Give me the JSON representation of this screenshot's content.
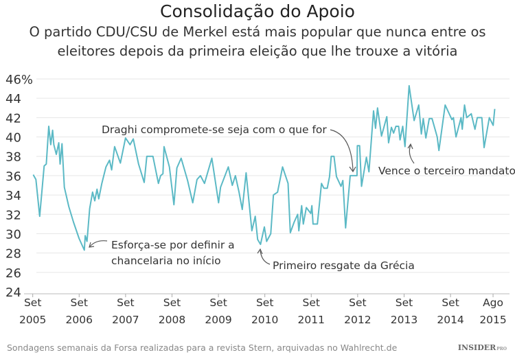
{
  "header": {
    "title": "Consolidação do Apoio",
    "subtitle_line1": "O partido CDU/CSU de Merkel está mais popular que nunca entre os",
    "subtitle_line2": "eleitores depois da primeira eleição que lhe trouxe a vitória"
  },
  "footer": {
    "source": "Sondagens semanais da Forsa realizadas para a revista Stern, arquivadas no Wahlrecht.de",
    "brand": "INSIDER",
    "brand_suffix": "PRO"
  },
  "chart_data": {
    "type": "line",
    "title": "Consolidação do Apoio",
    "xlabel": "",
    "ylabel": "",
    "ylim": [
      24,
      46
    ],
    "y_ticks": [
      "46%",
      "44",
      "42",
      "40",
      "38",
      "36",
      "34",
      "32",
      "30",
      "28",
      "26",
      "24"
    ],
    "y_tick_values": [
      46,
      44,
      42,
      40,
      38,
      36,
      34,
      32,
      30,
      28,
      26,
      24
    ],
    "x_ticks": [
      {
        "month": "Set",
        "year": "2005",
        "date": "2005-09-01"
      },
      {
        "month": "Set",
        "year": "2006",
        "date": "2006-09-01"
      },
      {
        "month": "Set",
        "year": "2007",
        "date": "2007-09-01"
      },
      {
        "month": "Set",
        "year": "2008",
        "date": "2008-09-01"
      },
      {
        "month": "Set",
        "year": "2009",
        "date": "2009-09-01"
      },
      {
        "month": "Set",
        "year": "2010",
        "date": "2010-09-01"
      },
      {
        "month": "Set",
        "year": "2011",
        "date": "2011-09-01"
      },
      {
        "month": "Set",
        "year": "2012",
        "date": "2012-09-01"
      },
      {
        "month": "Set",
        "year": "2013",
        "date": "2013-09-01"
      },
      {
        "month": "Set",
        "year": "2014",
        "date": "2014-09-01"
      },
      {
        "month": "Ago",
        "year": "2015",
        "date": "2015-08-01"
      }
    ],
    "grid": true,
    "line_color": "#5bb9c5",
    "series": [
      {
        "x": [
          "2005-09-05",
          "2005-09-26",
          "2005-10-25",
          "2005-11-30",
          "2005-12-16",
          "2006-01-05",
          "2006-01-21",
          "2006-02-05",
          "2006-02-15",
          "2006-03-04",
          "2006-03-23",
          "2006-04-03",
          "2006-04-18",
          "2006-05-06",
          "2006-06-11",
          "2006-07-17",
          "2006-08-31",
          "2006-10-11",
          "2006-10-18",
          "2006-11-02",
          "2006-11-23",
          "2006-12-15",
          "2007-01-02",
          "2007-01-20",
          "2007-02-03",
          "2007-02-27",
          "2007-03-29",
          "2007-04-27",
          "2007-05-13",
          "2007-06-06",
          "2007-07-21",
          "2007-08-31",
          "2007-10-06",
          "2007-10-31",
          "2007-12-12",
          "2008-01-26",
          "2008-02-16",
          "2008-04-03",
          "2008-05-16",
          "2008-06-03",
          "2008-06-21",
          "2008-06-30",
          "2008-08-11",
          "2008-09-16",
          "2008-10-09",
          "2008-11-12",
          "2009-01-02",
          "2009-02-12",
          "2009-03-15",
          "2009-04-12",
          "2009-05-13",
          "2009-07-10",
          "2009-09-02",
          "2009-09-18",
          "2009-11-18",
          "2009-12-19",
          "2010-01-13",
          "2010-02-11",
          "2010-03-06",
          "2010-04-06",
          "2010-05-21",
          "2010-06-17",
          "2010-07-05",
          "2010-07-28",
          "2010-08-28",
          "2010-09-15",
          "2010-10-17",
          "2010-11-08",
          "2010-12-10",
          "2011-01-19",
          "2011-03-01",
          "2011-03-19",
          "2011-04-19",
          "2011-05-16",
          "2011-05-25",
          "2011-06-17",
          "2011-06-30",
          "2011-07-23",
          "2011-08-28",
          "2011-09-06",
          "2011-09-15",
          "2011-10-19",
          "2011-11-21",
          "2011-12-09",
          "2012-01-05",
          "2012-01-23",
          "2012-02-06",
          "2012-02-28",
          "2012-03-17",
          "2012-04-22",
          "2012-05-06",
          "2012-05-28",
          "2012-07-03",
          "2012-08-26",
          "2012-08-29",
          "2012-09-16",
          "2012-10-01",
          "2012-11-09",
          "2012-11-29",
          "2013-01-04",
          "2013-01-20",
          "2013-02-05",
          "2013-03-06",
          "2013-04-17",
          "2013-05-01",
          "2013-05-23",
          "2013-06-10",
          "2013-06-28",
          "2013-07-19",
          "2013-07-30",
          "2013-08-21",
          "2013-09-08",
          "2013-10-10",
          "2013-11-19",
          "2013-12-25",
          "2014-01-15",
          "2014-01-30",
          "2014-02-20",
          "2014-03-16",
          "2014-04-08",
          "2014-05-18",
          "2014-06-01",
          "2014-07-20",
          "2014-09-12",
          "2014-09-24",
          "2014-10-14",
          "2014-11-23",
          "2014-12-02",
          "2014-12-20",
          "2015-01-07",
          "2015-02-12",
          "2015-03-11",
          "2015-03-29",
          "2015-05-04",
          "2015-05-22",
          "2015-07-02",
          "2015-08-02",
          "2015-08-14"
        ],
        "y": [
          36.1,
          35.6,
          31.8,
          37.0,
          37.2,
          41.1,
          39.2,
          40.7,
          39.2,
          38.2,
          39.4,
          37.2,
          39.3,
          34.8,
          32.8,
          31.2,
          29.5,
          28.3,
          29.8,
          29.2,
          32.6,
          34.3,
          33.4,
          34.6,
          33.6,
          35.2,
          36.9,
          37.6,
          36.6,
          39.0,
          37.3,
          39.9,
          39.2,
          39.8,
          37.2,
          35.3,
          38.0,
          38.0,
          35.2,
          36.0,
          36.2,
          39.0,
          36.9,
          33.0,
          36.8,
          37.8,
          35.5,
          33.2,
          35.6,
          36.0,
          35.2,
          37.8,
          33.2,
          34.8,
          36.9,
          35.0,
          36.0,
          34.3,
          32.5,
          36.3,
          30.3,
          31.8,
          29.4,
          28.9,
          30.7,
          29.2,
          30.0,
          34.0,
          34.3,
          36.9,
          35.2,
          30.1,
          31.2,
          32.0,
          30.3,
          32.9,
          31.0,
          32.7,
          32.1,
          32.9,
          31.0,
          31.0,
          35.2,
          34.7,
          34.7,
          35.9,
          38.0,
          38.0,
          35.9,
          34.9,
          35.5,
          30.6,
          36.0,
          36.0,
          39.1,
          39.1,
          34.9,
          37.9,
          36.4,
          42.7,
          40.9,
          43.0,
          40.1,
          42.1,
          39.4,
          41.0,
          40.4,
          41.1,
          41.1,
          39.7,
          41.1,
          39.0,
          45.3,
          41.7,
          43.3,
          40.3,
          41.9,
          39.9,
          41.9,
          41.9,
          40.0,
          38.6,
          43.3,
          41.8,
          42.0,
          40.0,
          42.0,
          40.8,
          43.3,
          42.0,
          42.4,
          40.8,
          42.0,
          42.0,
          38.9,
          42.0,
          41.2,
          42.9
        ]
      }
    ],
    "annotations": [
      {
        "text": "Draghi compromete-se seja com o que for"
      },
      {
        "text": "Vence o terceiro mandato"
      },
      {
        "text_line1": "Esforça-se por definir a",
        "text_line2": "chancelaria no início"
      },
      {
        "text": "Primeiro resgate da Grécia"
      }
    ]
  }
}
